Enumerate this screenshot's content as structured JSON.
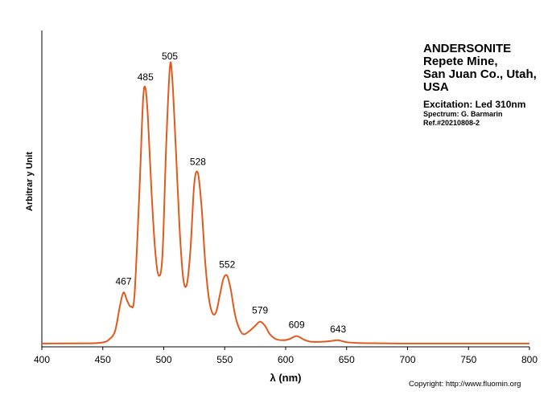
{
  "chart_data": {
    "type": "line",
    "title": "",
    "xlabel": "λ (nm)",
    "ylabel": "Arbitrar y Unit",
    "xlim": [
      400,
      800
    ],
    "ylim": [
      0,
      1
    ],
    "x_ticks": [
      "400",
      "450",
      "500",
      "550",
      "600",
      "650",
      "700",
      "750",
      "800"
    ],
    "grid": false,
    "color": "#E05A1E",
    "series": [
      {
        "x": [
          400,
          440,
          450,
          455,
          460,
          464,
          467,
          470,
          473,
          476,
          480,
          483,
          485,
          487,
          490,
          493,
          496,
          499,
          502,
          505,
          507,
          510,
          513,
          516,
          519,
          522,
          525,
          528,
          531,
          534,
          537,
          540,
          543,
          546,
          549,
          552,
          555,
          558,
          561,
          565,
          570,
          575,
          579,
          583,
          587,
          592,
          598,
          603,
          609,
          615,
          620,
          626,
          632,
          637,
          643,
          650,
          660,
          680,
          700,
          750,
          800
        ],
        "y": [
          0.006,
          0.007,
          0.01,
          0.02,
          0.05,
          0.14,
          0.19,
          0.16,
          0.14,
          0.18,
          0.55,
          0.88,
          0.925,
          0.82,
          0.55,
          0.34,
          0.25,
          0.33,
          0.72,
          1.0,
          0.96,
          0.7,
          0.42,
          0.24,
          0.22,
          0.35,
          0.58,
          0.62,
          0.5,
          0.3,
          0.17,
          0.115,
          0.12,
          0.18,
          0.24,
          0.25,
          0.2,
          0.12,
          0.07,
          0.04,
          0.05,
          0.07,
          0.085,
          0.07,
          0.04,
          0.022,
          0.018,
          0.022,
          0.033,
          0.02,
          0.013,
          0.012,
          0.013,
          0.015,
          0.018,
          0.011,
          0.008,
          0.007,
          0.006,
          0.006,
          0.006
        ]
      }
    ],
    "peak_labels": [
      {
        "x": 467,
        "y": 0.19,
        "text": "467"
      },
      {
        "x": 485,
        "y": 0.925,
        "text": "485"
      },
      {
        "x": 505,
        "y": 1.0,
        "text": "505"
      },
      {
        "x": 528,
        "y": 0.62,
        "text": "528"
      },
      {
        "x": 552,
        "y": 0.25,
        "text": "552"
      },
      {
        "x": 579,
        "y": 0.085,
        "text": "579"
      },
      {
        "x": 609,
        "y": 0.033,
        "text": "609"
      },
      {
        "x": 643,
        "y": 0.018,
        "text": "643"
      }
    ]
  },
  "info": {
    "title_lines": [
      "ANDERSONITE",
      "Repete Mine,",
      "San Juan Co., Utah,",
      "USA"
    ],
    "excitation": "Excitation:  Led 310nm",
    "spectrum": "Spectrum: G. Barmarin",
    "ref": "Ref.#20210808-2"
  },
  "copyright": "Copyright: http://www.fluomin.org"
}
